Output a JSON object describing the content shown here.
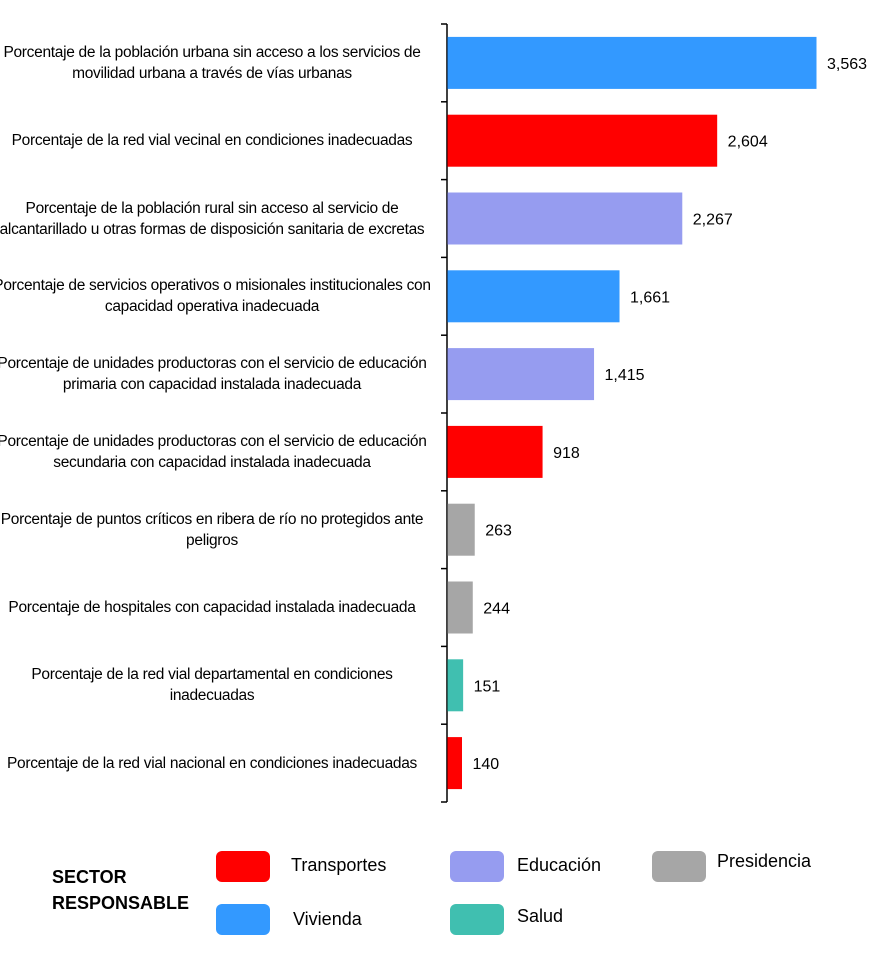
{
  "chart_data": {
    "type": "bar",
    "orientation": "horizontal",
    "categories": [
      "Porcentaje de la población urbana sin acceso a los servicios de movilidad urbana a través de vías urbanas",
      "Porcentaje de la red vial vecinal en condiciones inadecuadas",
      "Porcentaje de la población rural sin acceso al servicio de alcantarillado u otras formas de disposición sanitaria de excretas",
      "Porcentaje de servicios operativos o misionales institucionales con capacidad operativa inadecuada",
      "Porcentaje de unidades productoras con el servicio de educación primaria con capacidad instalada inadecuada",
      "Porcentaje de unidades productoras con el servicio de educación secundaria con capacidad instalada inadecuada",
      "Porcentaje de puntos críticos en ribera de río no protegidos ante peligros",
      "Porcentaje de hospitales con capacidad instalada inadecuada",
      "Porcentaje de la red vial departamental en condiciones inadecuadas",
      "Porcentaje de la red vial nacional en condiciones inadecuadas"
    ],
    "values": [
      3563,
      2604,
      2267,
      1661,
      1415,
      918,
      263,
      244,
      151,
      140
    ],
    "value_labels": [
      "3,563",
      "2,604",
      "2,267",
      "1,661",
      "1,415",
      "918",
      "263",
      "244",
      "151",
      "140"
    ],
    "sectors": [
      "Vivienda",
      "Transportes",
      "Educación",
      "Vivienda",
      "Educación",
      "Transportes",
      "Presidencia",
      "Presidencia",
      "Salud",
      "Transportes"
    ],
    "xlim": [
      0,
      3900
    ],
    "grid": false,
    "legend_position": "bottom"
  },
  "legend": {
    "title_line1": "SECTOR",
    "title_line2": "RESPONSABLE",
    "items": [
      {
        "name": "Transportes",
        "color": "#ff0000"
      },
      {
        "name": "Educación",
        "color": "#969cf0"
      },
      {
        "name": "Presidencia",
        "color": "#a6a6a6"
      },
      {
        "name": "Vivienda",
        "color": "#3399ff"
      },
      {
        "name": "Salud",
        "color": "#40bfb0"
      }
    ]
  },
  "colors": {
    "Transportes": "#ff0000",
    "Educación": "#969cf0",
    "Presidencia": "#a6a6a6",
    "Vivienda": "#3399ff",
    "Salud": "#40bfb0"
  }
}
